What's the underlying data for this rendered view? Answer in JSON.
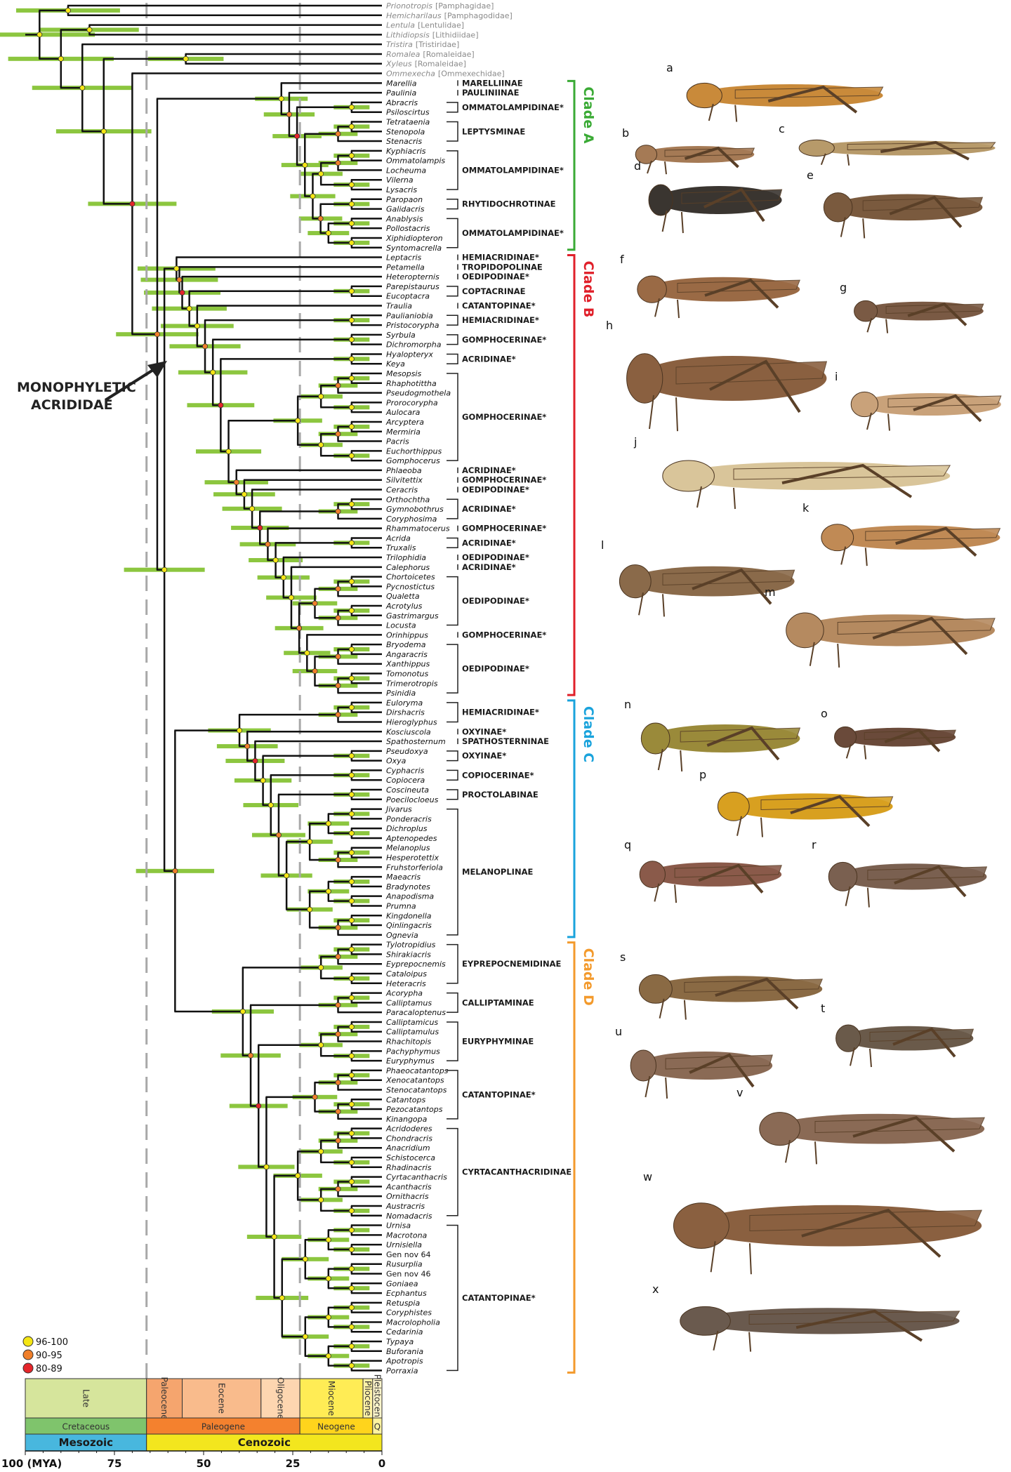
{
  "outgroups": [
    {
      "genus": "Prionotropis",
      "family": "[Pamphagidae]"
    },
    {
      "genus": "Hemicharilaus",
      "family": "[Pamphagodidae]"
    },
    {
      "genus": "Lentula",
      "family": "[Lentulidae]"
    },
    {
      "genus": "Lithidiopsis",
      "family": "[Lithidiidae]"
    },
    {
      "genus": "Tristira",
      "family": "[Tristiridae]"
    },
    {
      "genus": "Romalea",
      "family": "[Romaleidae]"
    },
    {
      "genus": "Xyleus",
      "family": "[Romaleidae]"
    },
    {
      "genus": "Ommexecha",
      "family": "[Ommexechidae]"
    }
  ],
  "taxa": [
    "Marellia",
    "Paulinia",
    "Abracris",
    "Psiloscirtus",
    "Tetrataenia",
    "Stenopola",
    "Stenacris",
    "Kyphiacris",
    "Ommatolampis",
    "Locheuma",
    "Vilerna",
    "Lysacris",
    "Paropaon",
    "Galidacris",
    "Anablysis",
    "Pollostacris",
    "Xiphidiopteron",
    "Syntomacrella",
    "Leptacris",
    "Petamella",
    "Heteropternis",
    "Parepistaurus",
    "Eucoptacra",
    "Traulia",
    "Paulianiobia",
    "Pristocorypha",
    "Syrbula",
    "Dichromorpha",
    "Hyalopteryx",
    "Keya",
    "Mesopsis",
    "Rhaphotittha",
    "Pseudogmothela",
    "Prorocorypha",
    "Aulocara",
    "Arcyptera",
    "Mermiria",
    "Pacris",
    "Euchorthippus",
    "Gomphocerus",
    "Phlaeoba",
    "Silvitettix",
    "Ceracris",
    "Orthochtha",
    "Gymnobothrus",
    "Coryphosima",
    "Rhammatocerus",
    "Acrida",
    "Truxalis",
    "Trilophidia",
    "Calephorus",
    "Chortoicetes",
    "Pycnostictus",
    "Qualetta",
    "Acrotylus",
    "Gastrimargus",
    "Locusta",
    "Orinhippus",
    "Bryodema",
    "Angaracris",
    "Xanthippus",
    "Tomonotus",
    "Trimerotropis",
    "Psinidia",
    "Euloryma",
    "Dirshacris",
    "Hieroglyphus",
    "Kosciuscola",
    "Spathosternum",
    "Pseudoxya",
    "Oxya",
    "Cyphacris",
    "Copiocera",
    "Coscineuta",
    "Poecilocloeus",
    "Jivarus",
    "Ponderacris",
    "Dichroplus",
    "Aptenopedes",
    "Melanoplus",
    "Hesperotettix",
    "Fruhstorferiola",
    "Maeacris",
    "Bradynotes",
    "Anapodisma",
    "Prumna",
    "Kingdonella",
    "Qinlingacris",
    "Ognevia",
    "Tylotropidius",
    "Shirakiacris",
    "Eyprepocnemis",
    "Cataloipus",
    "Heteracris",
    "Acorypha",
    "Calliptamus",
    "Paracaloptenus",
    "Calliptamicus",
    "Calliptamulus",
    "Rhachitopis",
    "Pachyphymus",
    "Euryphymus",
    "Phaeocatantops",
    "Xenocatantops",
    "Stenocatantops",
    "Catantops",
    "Pezocatantops",
    "Kinangopa",
    "Acridoderes",
    "Chondracris",
    "Anacridium",
    "Schistocerca",
    "Rhadinacris",
    "Cyrtacanthacris",
    "Acanthacris",
    "Ornithacris",
    "Austracris",
    "Nomadacris",
    "Urnisa",
    "Macrotona",
    "Urnisiella",
    "Gen nov 64",
    "Rusurplia",
    "Gen nov 46",
    "Goniaea",
    "Ecphantus",
    "Retuspia",
    "Coryphistes",
    "Macrolopholia",
    "Cedarinia",
    "Typaya",
    "Buforania",
    "Apotropis",
    "Porraxia"
  ],
  "groups": [
    {
      "label": "MARELLIINAE",
      "from": "Marellia",
      "to": "Marellia"
    },
    {
      "label": "PAULINIINAE",
      "from": "Paulinia",
      "to": "Paulinia"
    },
    {
      "label": "OMMATOLAMPIDINAE*",
      "from": "Abracris",
      "to": "Psiloscirtus"
    },
    {
      "label": "LEPTYSMINAE",
      "from": "Tetrataenia",
      "to": "Stenacris"
    },
    {
      "label": "OMMATOLAMPIDINAE*",
      "from": "Kyphiacris",
      "to": "Lysacris"
    },
    {
      "label": "RHYTIDOCHROTINAE",
      "from": "Paropaon",
      "to": "Galidacris"
    },
    {
      "label": "OMMATOLAMPIDINAE*",
      "from": "Anablysis",
      "to": "Syntomacrella"
    },
    {
      "label": "HEMIACRIDINAE*",
      "from": "Leptacris",
      "to": "Leptacris"
    },
    {
      "label": "TROPIDOPOLINAE",
      "from": "Petamella",
      "to": "Petamella"
    },
    {
      "label": "OEDIPODINAE*",
      "from": "Heteropternis",
      "to": "Heteropternis"
    },
    {
      "label": "COPTACRINAE",
      "from": "Parepistaurus",
      "to": "Eucoptacra"
    },
    {
      "label": "CATANTOPINAE*",
      "from": "Traulia",
      "to": "Traulia"
    },
    {
      "label": "HEMIACRIDINAE*",
      "from": "Paulianiobia",
      "to": "Pristocorypha"
    },
    {
      "label": "GOMPHOCERINAE*",
      "from": "Syrbula",
      "to": "Dichromorpha"
    },
    {
      "label": "ACRIDINAE*",
      "from": "Hyalopteryx",
      "to": "Keya"
    },
    {
      "label": "GOMPHOCERINAE*",
      "from": "Mesopsis",
      "to": "Gomphocerus"
    },
    {
      "label": "ACRIDINAE*",
      "from": "Phlaeoba",
      "to": "Phlaeoba"
    },
    {
      "label": "GOMPHOCERINAE*",
      "from": "Silvitettix",
      "to": "Silvitettix"
    },
    {
      "label": "OEDIPODINAE*",
      "from": "Ceracris",
      "to": "Ceracris"
    },
    {
      "label": "ACRIDINAE*",
      "from": "Orthochtha",
      "to": "Coryphosima"
    },
    {
      "label": "GOMPHOCERINAE*",
      "from": "Rhammatocerus",
      "to": "Rhammatocerus"
    },
    {
      "label": "ACRIDINAE*",
      "from": "Acrida",
      "to": "Truxalis"
    },
    {
      "label": "OEDIPODINAE*",
      "from": "Trilophidia",
      "to": "Trilophidia"
    },
    {
      "label": "ACRIDINAE*",
      "from": "Calephorus",
      "to": "Calephorus"
    },
    {
      "label": "OEDIPODINAE*",
      "from": "Chortoicetes",
      "to": "Locusta"
    },
    {
      "label": "GOMPHOCERINAE*",
      "from": "Orinhippus",
      "to": "Orinhippus"
    },
    {
      "label": "OEDIPODINAE*",
      "from": "Bryodema",
      "to": "Psinidia"
    },
    {
      "label": "HEMIACRIDINAE*",
      "from": "Euloryma",
      "to": "Hieroglyphus"
    },
    {
      "label": "OXYINAE*",
      "from": "Kosciuscola",
      "to": "Kosciuscola"
    },
    {
      "label": "SPATHOSTERNINAE",
      "from": "Spathosternum",
      "to": "Spathosternum"
    },
    {
      "label": "OXYINAE*",
      "from": "Pseudoxya",
      "to": "Oxya"
    },
    {
      "label": "COPIOCERINAE*",
      "from": "Cyphacris",
      "to": "Copiocera"
    },
    {
      "label": "PROCTOLABINAE",
      "from": "Coscineuta",
      "to": "Poecilocloeus"
    },
    {
      "label": "MELANOPLINAE",
      "from": "Jivarus",
      "to": "Ognevia"
    },
    {
      "label": "EYPREPOCNEMIDINAE",
      "from": "Tylotropidius",
      "to": "Heteracris"
    },
    {
      "label": "CALLIPTAMINAE",
      "from": "Acorypha",
      "to": "Paracaloptenus"
    },
    {
      "label": "EURYPHYMINAE",
      "from": "Calliptamicus",
      "to": "Euryphymus"
    },
    {
      "label": "CATANTOPINAE*",
      "from": "Phaeocatantops",
      "to": "Kinangopa"
    },
    {
      "label": "CYRTACANTHACRIDINAE",
      "from": "Acridoderes",
      "to": "Nomadacris"
    },
    {
      "label": "CATANTOPINAE*",
      "from": "Urnisa",
      "to": "Porraxia"
    }
  ],
  "clades": [
    {
      "label": "Clade A",
      "from": "Marellia",
      "to": "Syntomacrella",
      "color": "#3aaa35"
    },
    {
      "label": "Clade B",
      "from": "Leptacris",
      "to": "Psinidia",
      "color": "#e0202a"
    },
    {
      "label": "Clade C",
      "from": "Euloryma",
      "to": "Ognevia",
      "color": "#1aa3dc"
    },
    {
      "label": "Clade D",
      "from": "Tylotropidius",
      "to": "Porraxia",
      "color": "#f39a2c"
    }
  ],
  "acrididae_label": {
    "line1": "MONOPHYLETIC",
    "line2": "ACRIDIDAE"
  },
  "photos": [
    "a",
    "b",
    "c",
    "d",
    "e",
    "f",
    "g",
    "h",
    "i",
    "j",
    "k",
    "l",
    "m",
    "n",
    "o",
    "p",
    "q",
    "r",
    "s",
    "t",
    "u",
    "v",
    "w",
    "x"
  ],
  "legend": [
    {
      "label": "96-100",
      "color": "#f5e614"
    },
    {
      "label": "90-95",
      "color": "#f07f2a"
    },
    {
      "label": "80-89",
      "color": "#e5252a"
    }
  ],
  "timescale": {
    "epochs": [
      {
        "name": "Late",
        "start": 100,
        "end": 66,
        "color": "#d6e59c"
      },
      {
        "name": "Paleocene",
        "start": 66,
        "end": 56,
        "color": "#f5a56e"
      },
      {
        "name": "Eocene",
        "start": 56,
        "end": 33.9,
        "color": "#f9bb8c"
      },
      {
        "name": "Oligocene",
        "start": 33.9,
        "end": 23,
        "color": "#fdd6b0"
      },
      {
        "name": "Miocene",
        "start": 23,
        "end": 5.3,
        "color": "#ffec55"
      },
      {
        "name": "Pliocene",
        "start": 5.3,
        "end": 2.6,
        "color": "#fff3a6"
      },
      {
        "name": "Pleistocene",
        "start": 2.6,
        "end": 0,
        "color": "#fff6cc"
      }
    ],
    "periods": [
      {
        "name": "Cretaceous",
        "start": 100,
        "end": 66,
        "color": "#7fc46c"
      },
      {
        "name": "Paleogene",
        "start": 66,
        "end": 23,
        "color": "#f4812e"
      },
      {
        "name": "Neogene",
        "start": 23,
        "end": 2.6,
        "color": "#ffd41c"
      },
      {
        "name": "Q",
        "start": 2.6,
        "end": 0,
        "color": "#fff3a0"
      }
    ],
    "eras": [
      {
        "name": "Mesozoic",
        "start": 100,
        "end": 66,
        "color": "#48b7de"
      },
      {
        "name": "Cenozoic",
        "start": 66,
        "end": 0,
        "color": "#f3e61e"
      }
    ],
    "ticks": [
      {
        "value": 100,
        "label": "100 (MYA)"
      },
      {
        "value": 75,
        "label": "75"
      },
      {
        "value": 50,
        "label": "50"
      },
      {
        "value": 25,
        "label": "25"
      },
      {
        "value": 0,
        "label": "0"
      }
    ],
    "dashed_lines_mya": [
      66,
      23
    ]
  }
}
